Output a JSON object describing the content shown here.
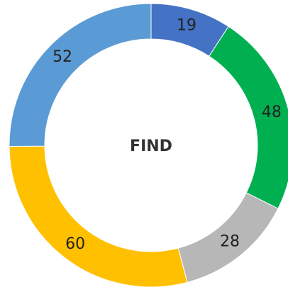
{
  "chart_data": {
    "type": "donut",
    "center_label": "FIND",
    "values": [
      19,
      48,
      28,
      60,
      52
    ],
    "colors": [
      "#4472c4",
      "#00b050",
      "#b7b7b7",
      "#ffc000",
      "#5b9bd5"
    ]
  }
}
